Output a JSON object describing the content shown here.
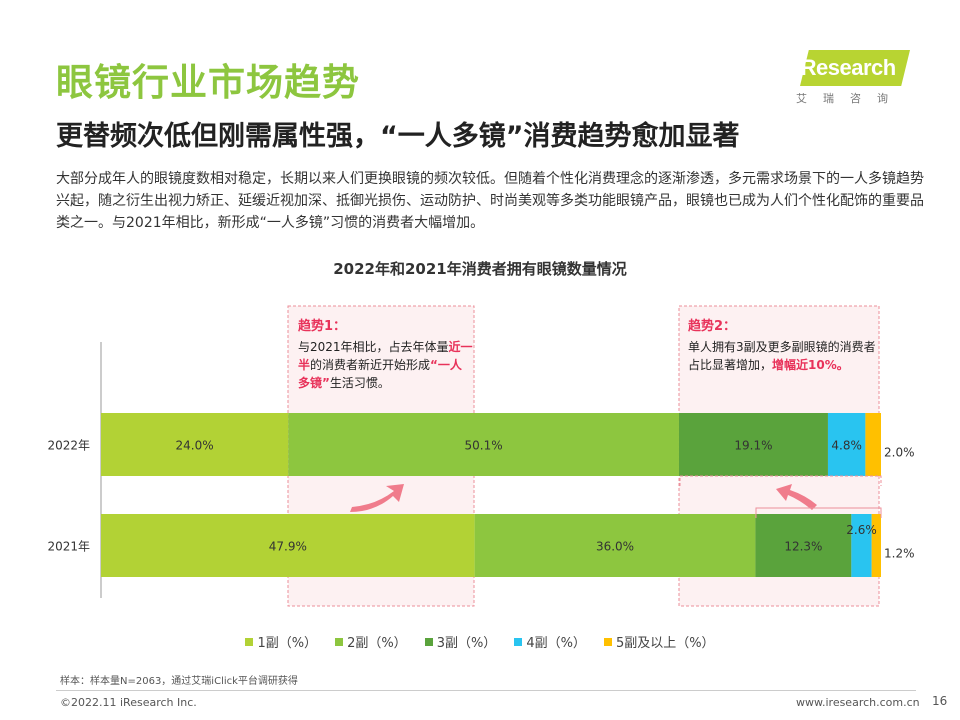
{
  "title": "眼镜行业市场趋势",
  "subtitle": "更替频次低但刚需属性强，“一人多镜”消费趋势愈加显著",
  "intro": "大部分成年人的眼镜度数相对稳定，长期以来人们更换眼镜的频次较低。但随着个性化消费理念的逐渐渗透，多元需求场景下的一人多镜趋势兴起，随之衍生出视力矫正、延缓近视加深、抵御光损伤、运动防护、时尚美观等多类功能眼镜产品，眼镜也已成为人们个性化配饰的重要品类之一。与2021年相比，新形成“一人多镜”习惯的消费者大幅增加。",
  "logo": {
    "brand": "iResearch",
    "sub": "艾瑞咨询"
  },
  "callouts": {
    "trend1": {
      "heading": "趋势1：",
      "t1": "与2021年相比，占去年体量",
      "em1": "近一半",
      "t2": "的消费者新近开始形成",
      "em2": "“一人多镜”",
      "t3": "生活习惯。"
    },
    "trend2": {
      "heading": "趋势2：",
      "t1": "单人拥有3副及更多副眼镜的消费者占比显著增加，",
      "em1": "增幅近10%。"
    }
  },
  "chart_data": {
    "type": "bar",
    "orientation": "horizontal",
    "stacked": true,
    "title": "2022年和2021年消费者拥有眼镜数量情况",
    "categories": [
      "2022年",
      "2021年"
    ],
    "series": [
      {
        "name": "1副（%）",
        "values": [
          24.0,
          47.9
        ],
        "labels": [
          "24.0%",
          "47.9%"
        ],
        "color": "#b2d235"
      },
      {
        "name": "2副（%）",
        "values": [
          50.1,
          36.0
        ],
        "labels": [
          "50.1%",
          "36.0%"
        ],
        "color": "#8dc63f"
      },
      {
        "name": "3副（%）",
        "values": [
          19.1,
          12.3
        ],
        "labels": [
          "19.1%",
          "12.3%"
        ],
        "color": "#5aa33c"
      },
      {
        "name": "4副（%）",
        "values": [
          4.8,
          2.6
        ],
        "labels": [
          "4.8%",
          "2.6%"
        ],
        "color": "#29c4f0"
      },
      {
        "name": "5副及以上（%）",
        "values": [
          2.0,
          1.2
        ],
        "labels": [
          "2.0%",
          "1.2%"
        ],
        "color": "#ffc000"
      }
    ],
    "xlim": [
      0,
      100
    ]
  },
  "footer": {
    "note": "样本：样本量N=2063，通过艾瑞iClick平台调研获得",
    "copyright": "©2022.11 iResearch Inc.",
    "website": "www.iresearch.com.cn",
    "page": "16"
  }
}
